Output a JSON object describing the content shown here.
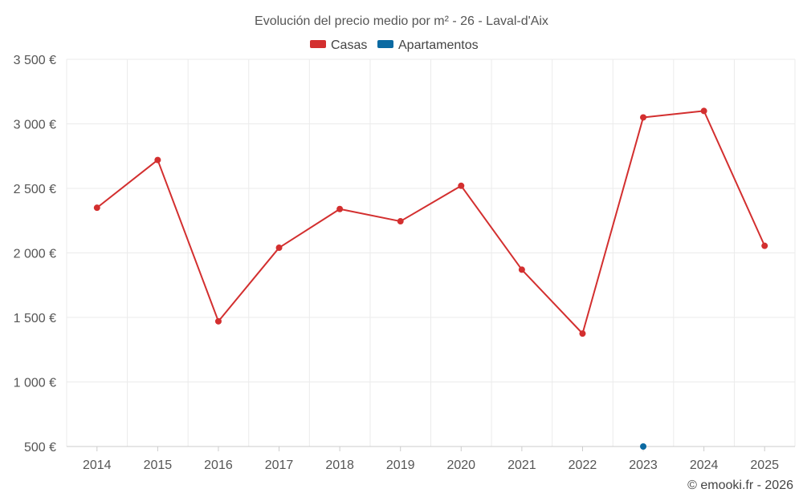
{
  "chart_data": {
    "type": "line",
    "title": "Evolución del precio medio por m² - 26 - Laval-d'Aix",
    "xlabel": "",
    "ylabel": "",
    "categories": [
      "2014",
      "2015",
      "2016",
      "2017",
      "2018",
      "2019",
      "2020",
      "2021",
      "2022",
      "2023",
      "2024",
      "2025"
    ],
    "y_ticks": [
      500,
      1000,
      1500,
      2000,
      2500,
      3000,
      3500
    ],
    "y_tick_labels": [
      "500 €",
      "1 000 €",
      "1 500 €",
      "2 000 €",
      "2 500 €",
      "3 000 €",
      "3 500 €"
    ],
    "ylim": [
      500,
      3500
    ],
    "grid": true,
    "legend_position": "top-center",
    "series": [
      {
        "name": "Casas",
        "color": "#d32f2f",
        "values": [
          2350,
          2720,
          1470,
          2040,
          2340,
          2245,
          2520,
          1870,
          1375,
          3050,
          3100,
          2055
        ]
      },
      {
        "name": "Apartamentos",
        "color": "#0b6aa2",
        "values": [
          null,
          null,
          null,
          null,
          null,
          null,
          null,
          null,
          null,
          500,
          null,
          null
        ]
      }
    ]
  },
  "credit": "© emooki.fr - 2026"
}
